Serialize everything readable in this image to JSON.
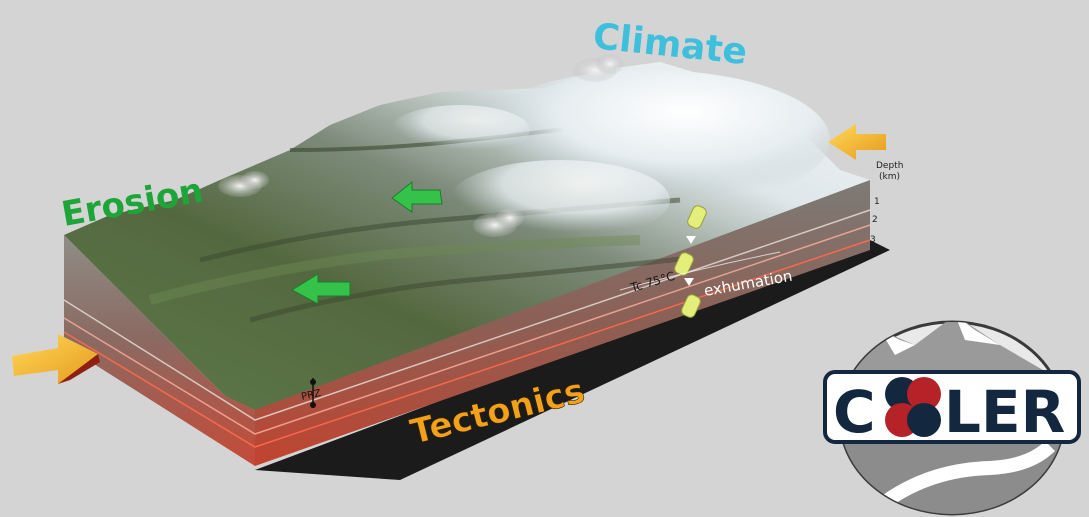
{
  "labels": {
    "climate": "Climate",
    "erosion": "Erosion",
    "tectonics": "Tectonics",
    "exhumation": "exhumation",
    "tc": "Tc 75°C",
    "prz": "PRZ"
  },
  "depth_axis": {
    "title_line1": "Depth",
    "title_line2": "(km)",
    "ticks": [
      "1",
      "2",
      "3"
    ]
  },
  "logo": {
    "text_c": "C",
    "text_rest": "LER",
    "full_name": "COOLER"
  },
  "colors": {
    "climate": "#3ec0dc",
    "erosion": "#1ea53a",
    "tectonics": "#f2a21a",
    "arrow_green": "#35c24a",
    "arrow_yellow": "#f3b62a",
    "arrow_red": "#8e1f12",
    "logo_navy": "#13283f",
    "logo_red": "#b52227",
    "background": "#d4d4d4"
  },
  "icons": {
    "compression_arrows": "tectonic-compression-arrow-icon",
    "flow_arrows": "erosion-flow-arrow-icon",
    "exhumation_arrows": "exhumation-up-arrow-icon",
    "clouds": "cloud-icon"
  }
}
